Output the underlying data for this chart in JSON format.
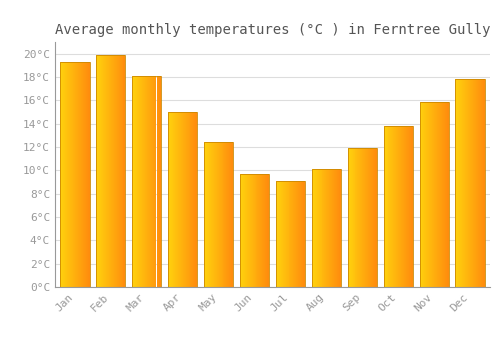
{
  "title": "Average monthly temperatures (°C ) in Ferntree Gully",
  "months": [
    "Jan",
    "Feb",
    "Mar",
    "Apr",
    "May",
    "Jun",
    "Jul",
    "Aug",
    "Sep",
    "Oct",
    "Nov",
    "Dec"
  ],
  "values": [
    19.3,
    19.9,
    18.1,
    15.0,
    12.4,
    9.7,
    9.1,
    10.1,
    11.9,
    13.8,
    15.9,
    17.8
  ],
  "bar_color_left": "#FFD040",
  "bar_color_right": "#FFA000",
  "bar_edge_color": "#CC8800",
  "background_color": "#FFFFFF",
  "grid_color": "#DDDDDD",
  "ylim": [
    0,
    21
  ],
  "ytick_step": 2,
  "title_fontsize": 10,
  "tick_fontsize": 8,
  "tick_label_color": "#999999",
  "title_color": "#555555",
  "font_family": "monospace",
  "bar_width": 0.82
}
